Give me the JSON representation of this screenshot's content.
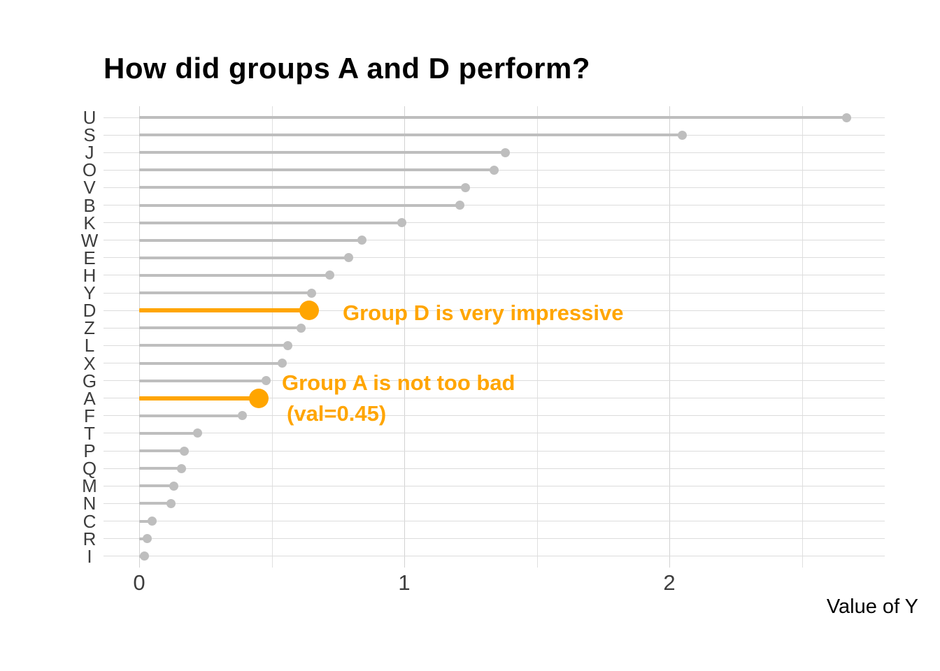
{
  "header": {
    "title": "How did groups A and D perform?"
  },
  "chart_data": {
    "type": "bar",
    "variant": "lollipop",
    "orientation": "horizontal",
    "title": "How did groups A and D perform?",
    "xlabel": "Value of Y",
    "ylabel": "",
    "xlim": [
      0,
      2.8
    ],
    "x_ticks": [
      0,
      1,
      2
    ],
    "x_tick_labels": [
      "0",
      "1",
      "2"
    ],
    "x_minor_gridlines": [
      0.5,
      1.5,
      2.5
    ],
    "grid": "on",
    "legend": "none",
    "categories": [
      "U",
      "S",
      "J",
      "O",
      "V",
      "B",
      "K",
      "W",
      "E",
      "H",
      "Y",
      "D",
      "Z",
      "L",
      "X",
      "G",
      "A",
      "F",
      "T",
      "P",
      "Q",
      "M",
      "N",
      "C",
      "R",
      "I"
    ],
    "values": [
      2.67,
      2.05,
      1.38,
      1.34,
      1.23,
      1.21,
      0.99,
      0.84,
      0.79,
      0.72,
      0.65,
      0.64,
      0.61,
      0.56,
      0.54,
      0.48,
      0.45,
      0.39,
      0.22,
      0.17,
      0.16,
      0.13,
      0.12,
      0.05,
      0.03,
      0.02
    ],
    "highlighted_categories": [
      "D",
      "A"
    ],
    "annotations": [
      {
        "for": "D",
        "lines": [
          "Group D is very impressive"
        ]
      },
      {
        "for": "A",
        "lines": [
          "Group A is not too bad",
          "(val=0.45)"
        ]
      }
    ],
    "colors": {
      "highlight": "#FFA500",
      "default": "#BEBEBE",
      "gridline": "#DCDCDC",
      "axis_text": "#3D3D3D",
      "title_text": "#000000"
    }
  }
}
